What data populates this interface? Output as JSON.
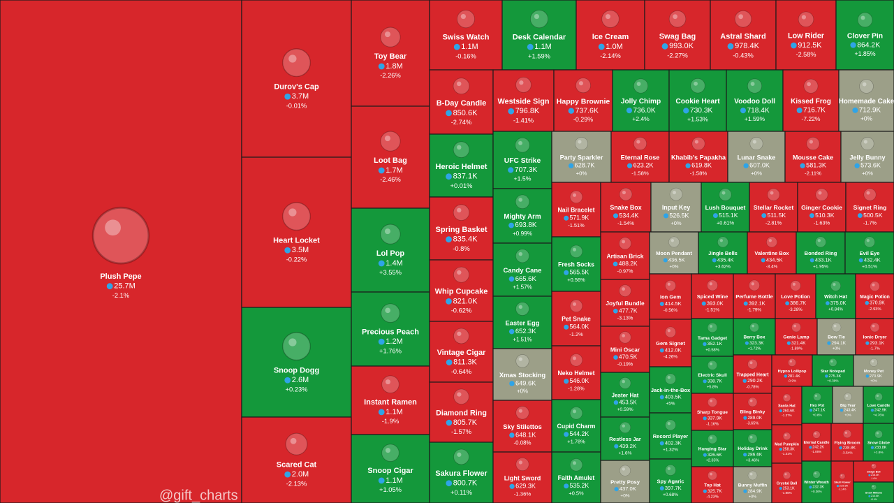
{
  "watermark": "@gift_charts",
  "tiles": [
    {
      "name": "Plush Pepe",
      "price": "25.7M",
      "change": "-2.1%",
      "color": "#d7262b"
    },
    {
      "name": "Durov's Cap",
      "price": "3.7M",
      "change": "-0.01%",
      "color": "#d7262b"
    },
    {
      "name": "Heart Locket",
      "price": "3.5M",
      "change": "-0.22%",
      "color": "#d7262b"
    },
    {
      "name": "Snoop Dogg",
      "price": "2.6M",
      "change": "+0.23%",
      "color": "#14983b"
    },
    {
      "name": "Scared Cat",
      "price": "2.0M",
      "change": "-2.13%",
      "color": "#d7262b"
    },
    {
      "name": "Toy Bear",
      "price": "1.8M",
      "change": "-2.26%",
      "color": "#d7262b"
    },
    {
      "name": "Loot Bag",
      "price": "1.7M",
      "change": "-2.46%",
      "color": "#d7262b"
    },
    {
      "name": "Lol Pop",
      "price": "1.4M",
      "change": "+3.55%",
      "color": "#14983b"
    },
    {
      "name": "Precious Peach",
      "price": "1.2M",
      "change": "+1.76%",
      "color": "#14983b"
    },
    {
      "name": "Instant Ramen",
      "price": "1.1M",
      "change": "-1.9%",
      "color": "#d7262b"
    },
    {
      "name": "Snoop Cigar",
      "price": "1.1M",
      "change": "+1.05%",
      "color": "#14983b"
    },
    {
      "name": "Swiss Watch",
      "price": "1.1M",
      "change": "-0.16%",
      "color": "#d7262b"
    },
    {
      "name": "Desk Calendar",
      "price": "1.1M",
      "change": "+1.59%",
      "color": "#14983b"
    },
    {
      "name": "Ice Cream",
      "price": "1.0M",
      "change": "-2.14%",
      "color": "#d7262b"
    },
    {
      "name": "Swag Bag",
      "price": "993.0K",
      "change": "-2.27%",
      "color": "#d7262b"
    },
    {
      "name": "Astral Shard",
      "price": "978.4K",
      "change": "-0.43%",
      "color": "#d7262b"
    },
    {
      "name": "Low Rider",
      "price": "912.5K",
      "change": "-2.58%",
      "color": "#d7262b"
    },
    {
      "name": "Clover Pin",
      "price": "864.2K",
      "change": "+1.85%",
      "color": "#14983b"
    },
    {
      "name": "B-Day Candle",
      "price": "850.6K",
      "change": "-2.74%",
      "color": "#d7262b"
    },
    {
      "name": "Heroic Helmet",
      "price": "837.1K",
      "change": "+0.01%",
      "color": "#14983b"
    },
    {
      "name": "Spring Basket",
      "price": "835.4K",
      "change": "-0.8%",
      "color": "#d7262b"
    },
    {
      "name": "Whip Cupcake",
      "price": "821.0K",
      "change": "-0.62%",
      "color": "#d7262b"
    },
    {
      "name": "Vintage Cigar",
      "price": "811.3K",
      "change": "-0.64%",
      "color": "#d7262b"
    },
    {
      "name": "Diamond Ring",
      "price": "805.7K",
      "change": "-1.57%",
      "color": "#d7262b"
    },
    {
      "name": "Sakura Flower",
      "price": "800.7K",
      "change": "+0.11%",
      "color": "#14983b"
    },
    {
      "name": "Westside Sign",
      "price": "796.8K",
      "change": "-1.41%",
      "color": "#d7262b"
    },
    {
      "name": "Happy Brownie",
      "price": "737.6K",
      "change": "-0.29%",
      "color": "#d7262b"
    },
    {
      "name": "Jolly Chimp",
      "price": "736.0K",
      "change": "+2.4%",
      "color": "#14983b"
    },
    {
      "name": "Cookie Heart",
      "price": "730.3K",
      "change": "+1.53%",
      "color": "#14983b"
    },
    {
      "name": "Voodoo Doll",
      "price": "718.4K",
      "change": "+1.59%",
      "color": "#14983b"
    },
    {
      "name": "Kissed Frog",
      "price": "716.7K",
      "change": "-7.22%",
      "color": "#d7262b"
    },
    {
      "name": "Homemade Cake",
      "price": "712.9K",
      "change": "+0%",
      "color": "#9c9f88"
    },
    {
      "name": "UFC Strike",
      "price": "707.3K",
      "change": "+1.5%",
      "color": "#14983b"
    },
    {
      "name": "Mighty Arm",
      "price": "693.8K",
      "change": "+0.99%",
      "color": "#14983b"
    },
    {
      "name": "Candy Cane",
      "price": "665.6K",
      "change": "+1.57%",
      "color": "#14983b"
    },
    {
      "name": "Easter Egg",
      "price": "652.3K",
      "change": "+1.51%",
      "color": "#14983b"
    },
    {
      "name": "Xmas Stocking",
      "price": "649.6K",
      "change": "+0%",
      "color": "#9c9f88"
    },
    {
      "name": "Sky Stilettos",
      "price": "648.1K",
      "change": "-0.08%",
      "color": "#d7262b"
    },
    {
      "name": "Light Sword",
      "price": "629.3K",
      "change": "-1.36%",
      "color": "#d7262b"
    },
    {
      "name": "Party Sparkler",
      "price": "628.7K",
      "change": "+0%",
      "color": "#9c9f88"
    },
    {
      "name": "Eternal Rose",
      "price": "623.2K",
      "change": "-1.58%",
      "color": "#d7262b"
    },
    {
      "name": "Khabib's Papakha",
      "price": "619.8K",
      "change": "-1.58%",
      "color": "#d7262b"
    },
    {
      "name": "Lunar Snake",
      "price": "607.0K",
      "change": "+0%",
      "color": "#9c9f88"
    },
    {
      "name": "Mousse Cake",
      "price": "581.3K",
      "change": "-2.11%",
      "color": "#d7262b"
    },
    {
      "name": "Jelly Bunny",
      "price": "573.6K",
      "change": "+0%",
      "color": "#9c9f88"
    },
    {
      "name": "Nail Bracelet",
      "price": "571.9K",
      "change": "-1.51%",
      "color": "#d7262b"
    },
    {
      "name": "Fresh Socks",
      "price": "565.5K",
      "change": "+0.56%",
      "color": "#14983b"
    },
    {
      "name": "Pet Snake",
      "price": "564.0K",
      "change": "-1.2%",
      "color": "#d7262b"
    },
    {
      "name": "Neko Helmet",
      "price": "546.0K",
      "change": "-1.28%",
      "color": "#d7262b"
    },
    {
      "name": "Cupid Charm",
      "price": "544.2K",
      "change": "+1.78%",
      "color": "#14983b"
    },
    {
      "name": "Faith Amulet",
      "price": "535.2K",
      "change": "+0.5%",
      "color": "#14983b"
    },
    {
      "name": "Snake Box",
      "price": "534.4K",
      "change": "-1.54%",
      "color": "#d7262b"
    },
    {
      "name": "Input Key",
      "price": "526.5K",
      "change": "+0%",
      "color": "#9c9f88"
    },
    {
      "name": "Lush Bouquet",
      "price": "515.1K",
      "change": "+0.61%",
      "color": "#14983b"
    },
    {
      "name": "Stellar Rocket",
      "price": "511.5K",
      "change": "-2.81%",
      "color": "#d7262b"
    },
    {
      "name": "Ginger Cookie",
      "price": "510.3K",
      "change": "-1.63%",
      "color": "#d7262b"
    },
    {
      "name": "Signet Ring",
      "price": "500.5K",
      "change": "-1.7%",
      "color": "#d7262b"
    },
    {
      "name": "Artisan Brick",
      "price": "488.2K",
      "change": "-0.97%",
      "color": "#d7262b"
    },
    {
      "name": "Joyful Bundle",
      "price": "477.7K",
      "change": "-3.13%",
      "color": "#d7262b"
    },
    {
      "name": "Mini Oscar",
      "price": "470.5K",
      "change": "-0.19%",
      "color": "#d7262b"
    },
    {
      "name": "Jester Hat",
      "price": "453.5K",
      "change": "+0.59%",
      "color": "#14983b"
    },
    {
      "name": "Restless Jar",
      "price": "439.2K",
      "change": "+1.6%",
      "color": "#14983b"
    },
    {
      "name": "Pretty Posy",
      "price": "437.0K",
      "change": "+0%",
      "color": "#9c9f88"
    },
    {
      "name": "Moon Pendant",
      "price": "436.5K",
      "change": "+0%",
      "color": "#9c9f88"
    },
    {
      "name": "Jingle Bells",
      "price": "435.4K",
      "change": "+3.62%",
      "color": "#14983b"
    },
    {
      "name": "Valentine Box",
      "price": "434.5K",
      "change": "-3.4%",
      "color": "#d7262b"
    },
    {
      "name": "Bonded Ring",
      "price": "433.1K",
      "change": "+1.95%",
      "color": "#14983b"
    },
    {
      "name": "Evil Eye",
      "price": "432.4K",
      "change": "+0.51%",
      "color": "#14983b"
    },
    {
      "name": "Ion Gem",
      "price": "414.5K",
      "change": "-0.56%",
      "color": "#d7262b"
    },
    {
      "name": "Gem Signet",
      "price": "412.0K",
      "change": "-4.26%",
      "color": "#d7262b"
    },
    {
      "name": "Jack-in-the-Box",
      "price": "403.5K",
      "change": "+5%",
      "color": "#14983b"
    },
    {
      "name": "Record Player",
      "price": "402.3K",
      "change": "+1.32%",
      "color": "#14983b"
    },
    {
      "name": "Spy Agaric",
      "price": "397.7K",
      "change": "+0.68%",
      "color": "#14983b"
    },
    {
      "name": "Spiced Wine",
      "price": "393.0K",
      "change": "-1.51%",
      "color": "#d7262b"
    },
    {
      "name": "Perfume Bottle",
      "price": "392.1K",
      "change": "-1.79%",
      "color": "#d7262b"
    },
    {
      "name": "Love Potion",
      "price": "386.7K",
      "change": "-3.28%",
      "color": "#d7262b"
    },
    {
      "name": "Witch Hat",
      "price": "375.0K",
      "change": "+0.84%",
      "color": "#14983b"
    },
    {
      "name": "Magic Potion",
      "price": "370.9K",
      "change": "-2.93%",
      "color": "#d7262b"
    },
    {
      "name": "Tama Gadget",
      "price": "352.1K",
      "change": "+0.58%",
      "color": "#14983b"
    },
    {
      "name": "Electric Skull",
      "price": "338.7K",
      "change": "+5.8%",
      "color": "#14983b"
    },
    {
      "name": "Sharp Tongue",
      "price": "337.9K",
      "change": "-1.16%",
      "color": "#d7262b"
    },
    {
      "name": "Hanging Star",
      "price": "326.6K",
      "change": "+2.35%",
      "color": "#14983b"
    },
    {
      "name": "Top Hat",
      "price": "325.7K",
      "change": "-4.23%",
      "color": "#d7262b"
    },
    {
      "name": "Berry Box",
      "price": "323.3K",
      "change": "+1.72%",
      "color": "#14983b"
    },
    {
      "name": "Genie Lamp",
      "price": "321.4K",
      "change": "-1.89%",
      "color": "#d7262b"
    },
    {
      "name": "Bow Tie",
      "price": "294.1K",
      "change": "+0%",
      "color": "#9c9f88"
    },
    {
      "name": "Ionic Dryer",
      "price": "293.1K",
      "change": "-1.7%",
      "color": "#d7262b"
    },
    {
      "name": "Trapped Heart",
      "price": "290.2K",
      "change": "-0.78%",
      "color": "#d7262b"
    },
    {
      "name": "Bling Binky",
      "price": "289.0K",
      "change": "-3.65%",
      "color": "#d7262b"
    },
    {
      "name": "Holiday Drink",
      "price": "286.6K",
      "change": "+3.46%",
      "color": "#14983b"
    },
    {
      "name": "Bunny Muffin",
      "price": "284.9K",
      "change": "+0%",
      "color": "#9c9f88"
    },
    {
      "name": "Hypno Lollipop",
      "price": "281.4K",
      "change": "-0.9%",
      "color": "#d7262b"
    },
    {
      "name": "Star Notepad",
      "price": "275.3K",
      "change": "+0.39%",
      "color": "#14983b"
    },
    {
      "name": "Money Pot",
      "price": "270.9K",
      "change": "+0%",
      "color": "#9c9f88"
    },
    {
      "name": "Santa Hat",
      "price": "260.6K",
      "change": "-1.37%",
      "color": "#d7262b"
    },
    {
      "name": "Mad Pumpkin",
      "price": "258.3K",
      "change": "-1.31%",
      "color": "#d7262b"
    },
    {
      "name": "Crystal Ball",
      "price": "253.1K",
      "change": "-1.96%",
      "color": "#d7262b"
    },
    {
      "name": "Hex Pot",
      "price": "247.1K",
      "change": "+0.8%",
      "color": "#14983b"
    },
    {
      "name": "Big Year",
      "price": "243.4K",
      "change": "+0%",
      "color": "#9c9f88"
    },
    {
      "name": "Love Candle",
      "price": "242.9K",
      "change": "+4.76%",
      "color": "#14983b"
    },
    {
      "name": "Eternal Candle",
      "price": "242.2K",
      "change": "-1.06%",
      "color": "#d7262b"
    },
    {
      "name": "Flying Broom",
      "price": "238.8K",
      "change": "-3.54%",
      "color": "#d7262b"
    },
    {
      "name": "Snow Globe",
      "price": "233.8K",
      "change": "+1.6%",
      "color": "#14983b"
    },
    {
      "name": "Winter Wreath",
      "price": "232.3K",
      "change": "+0.36%",
      "color": "#14983b"
    },
    {
      "name": "Skull Flower",
      "price": "219.5K",
      "change": "-1.14%",
      "color": "#d7262b"
    },
    {
      "name": "Sleigh Bell",
      "price": "218.0K",
      "change": "-1.6%",
      "color": "#d7262b"
    },
    {
      "name": "Snow Mittens",
      "price": "210.6K",
      "change": "+0.4%",
      "color": "#14983b"
    }
  ]
}
